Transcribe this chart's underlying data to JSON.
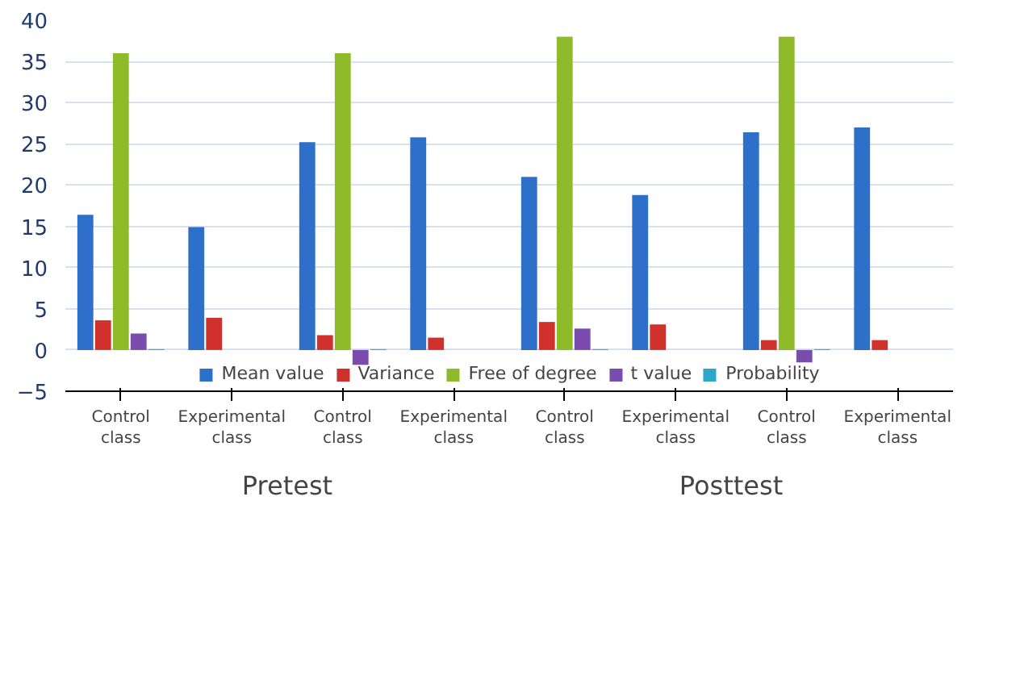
{
  "chart_data": {
    "type": "bar",
    "categories": [
      "Control class",
      "Experimental class",
      "Control class",
      "Experimental class",
      "Control class",
      "Experimental class",
      "Control class",
      "Experimental class"
    ],
    "series": [
      {
        "name": "Mean value",
        "color": "#2e6fc9",
        "values": [
          16.4,
          14.9,
          25.2,
          25.8,
          21.0,
          18.8,
          26.4,
          27.0
        ]
      },
      {
        "name": "Variance",
        "color": "#d0312d",
        "values": [
          3.6,
          3.9,
          1.8,
          1.5,
          3.4,
          3.1,
          1.2,
          1.2
        ]
      },
      {
        "name": "Free of degree",
        "color": "#8dbb2a",
        "values": [
          36,
          null,
          36,
          null,
          38,
          null,
          38,
          null
        ]
      },
      {
        "name": "t value",
        "color": "#7a4cae",
        "values": [
          2.0,
          null,
          -1.8,
          null,
          2.6,
          null,
          -1.5,
          null
        ]
      },
      {
        "name": "Probability",
        "color": "#2aa7c9",
        "values": [
          0.1,
          null,
          0.1,
          null,
          0.1,
          null,
          0.1,
          null
        ]
      }
    ],
    "ylim": [
      -5,
      40
    ],
    "yticks": [
      -5,
      0,
      5,
      10,
      15,
      20,
      25,
      30,
      35,
      40
    ],
    "grid": "y",
    "legend": "bottom",
    "annotations": [
      "Pretest",
      "Posttest"
    ]
  }
}
